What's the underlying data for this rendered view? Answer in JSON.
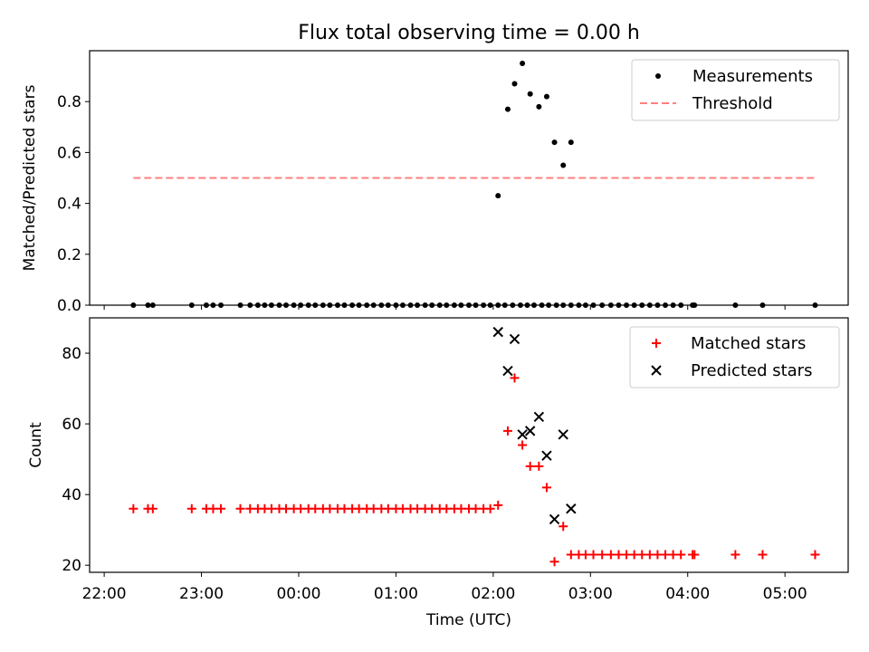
{
  "chart_data": [
    {
      "type": "scatter",
      "title": "Flux total observing time = 0.00 h",
      "xlabel": "",
      "ylabel": "Matched/Predicted stars",
      "xlim": [
        -0.15,
        7.65
      ],
      "ylim": [
        0,
        1.0
      ],
      "yticks": [
        0.0,
        0.2,
        0.4,
        0.6,
        0.8
      ],
      "ytick_labels": [
        "0.0",
        "0.2",
        "0.4",
        "0.6",
        "0.8"
      ],
      "legend_position": "top-right",
      "series": [
        {
          "name": "Measurements",
          "marker": "dot",
          "color": "#000000",
          "x": [
            0.3,
            0.45,
            0.5,
            0.9,
            1.05,
            1.12,
            1.2,
            1.4,
            1.5,
            1.58,
            1.65,
            1.72,
            1.8,
            1.87,
            1.95,
            2.02,
            2.1,
            2.17,
            2.25,
            2.32,
            2.4,
            2.47,
            2.55,
            2.62,
            2.7,
            2.77,
            2.85,
            2.92,
            3.0,
            3.07,
            3.15,
            3.22,
            3.3,
            3.37,
            3.45,
            3.52,
            3.6,
            3.67,
            3.75,
            3.82,
            3.9,
            3.97,
            4.05,
            4.12,
            4.2,
            4.28,
            4.35,
            4.42,
            4.5,
            4.57,
            4.65,
            4.72,
            4.8,
            4.88,
            4.95,
            5.03,
            5.12,
            5.21,
            5.29,
            5.37,
            5.45,
            5.53,
            5.61,
            5.69,
            5.77,
            5.85,
            5.93,
            6.05,
            6.07,
            6.49,
            6.77,
            7.31,
            4.05,
            4.15,
            4.22,
            4.3,
            4.38,
            4.47,
            4.55,
            4.63,
            4.72,
            4.8
          ],
          "y": [
            0,
            0,
            0,
            0,
            0,
            0,
            0,
            0,
            0,
            0,
            0,
            0,
            0,
            0,
            0,
            0,
            0,
            0,
            0,
            0,
            0,
            0,
            0,
            0,
            0,
            0,
            0,
            0,
            0,
            0,
            0,
            0,
            0,
            0,
            0,
            0,
            0,
            0,
            0,
            0,
            0,
            0,
            0,
            0,
            0,
            0,
            0,
            0,
            0,
            0,
            0,
            0,
            0,
            0,
            0,
            0,
            0,
            0,
            0,
            0,
            0,
            0,
            0,
            0,
            0,
            0,
            0,
            0,
            0,
            0,
            0,
            0,
            0.43,
            0.77,
            0.87,
            0.95,
            0.83,
            0.78,
            0.82,
            0.64,
            0.55,
            0.64
          ]
        },
        {
          "name": "Threshold",
          "style": "dashed",
          "color": "#ff7f7f",
          "x": [
            0.3,
            7.3
          ],
          "y": [
            0.5,
            0.5
          ]
        }
      ]
    },
    {
      "type": "scatter",
      "title": "",
      "xlabel": "Time (UTC)",
      "ylabel": "Count",
      "xlim": [
        -0.15,
        7.65
      ],
      "ylim": [
        18,
        90
      ],
      "yticks": [
        20,
        40,
        60,
        80
      ],
      "ytick_labels": [
        "20",
        "40",
        "60",
        "80"
      ],
      "xticks": [
        0,
        1,
        2,
        3,
        4,
        5,
        6,
        7
      ],
      "xtick_labels": [
        "22:00",
        "23:00",
        "00:00",
        "01:00",
        "02:00",
        "03:00",
        "04:00",
        "05:00"
      ],
      "legend_position": "top-right",
      "series": [
        {
          "name": "Matched stars",
          "marker": "plus",
          "color": "#ff0000",
          "x": [
            0.3,
            0.45,
            0.5,
            0.9,
            1.05,
            1.12,
            1.2,
            1.4,
            1.5,
            1.58,
            1.65,
            1.72,
            1.8,
            1.87,
            1.95,
            2.02,
            2.1,
            2.17,
            2.25,
            2.32,
            2.4,
            2.47,
            2.55,
            2.62,
            2.7,
            2.77,
            2.85,
            2.92,
            3.0,
            3.07,
            3.15,
            3.22,
            3.3,
            3.37,
            3.45,
            3.52,
            3.6,
            3.67,
            3.75,
            3.82,
            3.9,
            3.97,
            4.05,
            4.15,
            4.22,
            4.3,
            4.38,
            4.47,
            4.55,
            4.63,
            4.72,
            4.8,
            4.88,
            4.95,
            5.03,
            5.12,
            5.21,
            5.29,
            5.37,
            5.45,
            5.53,
            5.61,
            5.69,
            5.77,
            5.85,
            5.93,
            6.05,
            6.07,
            6.49,
            6.77,
            7.31
          ],
          "y": [
            36,
            36,
            36,
            36,
            36,
            36,
            36,
            36,
            36,
            36,
            36,
            36,
            36,
            36,
            36,
            36,
            36,
            36,
            36,
            36,
            36,
            36,
            36,
            36,
            36,
            36,
            36,
            36,
            36,
            36,
            36,
            36,
            36,
            36,
            36,
            36,
            36,
            36,
            36,
            36,
            36,
            36,
            37,
            58,
            73,
            54,
            48,
            48,
            42,
            21,
            31,
            23,
            23,
            23,
            23,
            23,
            23,
            23,
            23,
            23,
            23,
            23,
            23,
            23,
            23,
            23,
            23,
            23,
            23,
            23,
            23
          ]
        },
        {
          "name": "Predicted stars",
          "marker": "x",
          "color": "#000000",
          "x": [
            4.05,
            4.15,
            4.22,
            4.3,
            4.38,
            4.47,
            4.55,
            4.63,
            4.72,
            4.8
          ],
          "y": [
            86,
            75,
            84,
            57,
            58,
            62,
            51,
            33,
            57,
            36
          ]
        }
      ]
    }
  ]
}
